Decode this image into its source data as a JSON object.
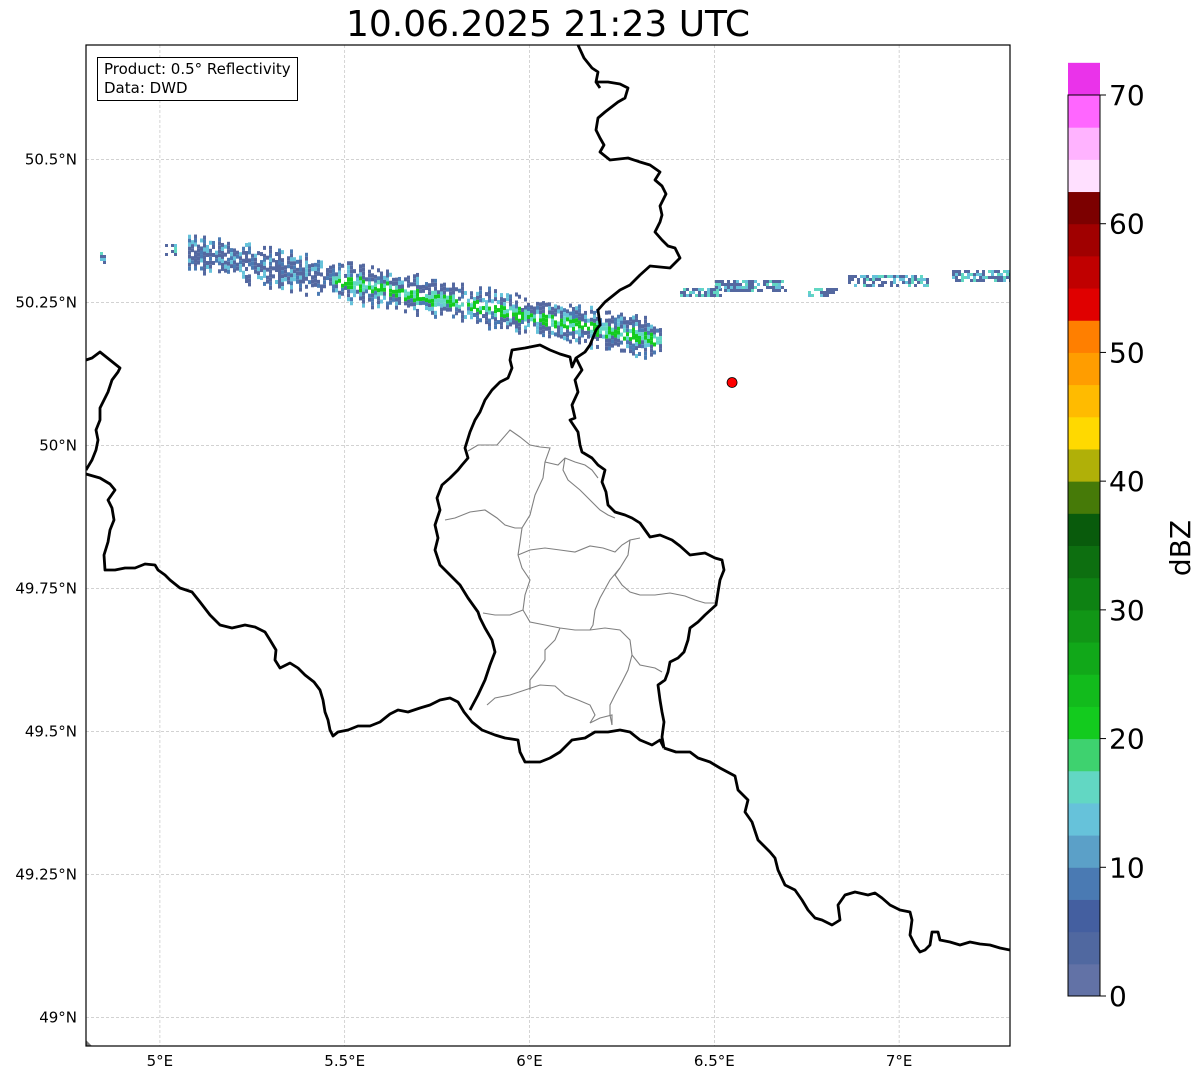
{
  "title": "10.06.2025 21:23 UTC",
  "info": {
    "product": "Product: 0.5° Reflectivity",
    "source": "Data: DWD"
  },
  "map": {
    "lon_range": [
      4.8,
      7.3
    ],
    "lat_range": [
      48.95,
      50.7
    ],
    "lon_ticks": [
      {
        "v": 5.0,
        "label": "5°E"
      },
      {
        "v": 5.5,
        "label": "5.5°E"
      },
      {
        "v": 6.0,
        "label": "6°E"
      },
      {
        "v": 6.5,
        "label": "6.5°E"
      },
      {
        "v": 7.0,
        "label": "7°E"
      }
    ],
    "lat_ticks": [
      {
        "v": 50.5,
        "label": "50.5°N"
      },
      {
        "v": 50.25,
        "label": "50.25°N"
      },
      {
        "v": 50.0,
        "label": "50°N"
      },
      {
        "v": 49.75,
        "label": "49.75°N"
      },
      {
        "v": 49.5,
        "label": "49.5°N"
      },
      {
        "v": 49.25,
        "label": "49.25°N"
      },
      {
        "v": 49.0,
        "label": "49°N"
      }
    ],
    "radar_site": {
      "lon": 6.548,
      "lat": 50.11,
      "color": "#ff0000"
    },
    "gridlines": true
  },
  "colorbar": {
    "label": "dBZ",
    "min": 0,
    "max": 70,
    "step": 2.5,
    "ticks": [
      {
        "v": 0,
        "label": "0"
      },
      {
        "v": 10,
        "label": "10"
      },
      {
        "v": 20,
        "label": "20"
      },
      {
        "v": 30,
        "label": "30"
      },
      {
        "v": 40,
        "label": "40"
      },
      {
        "v": 50,
        "label": "50"
      },
      {
        "v": 60,
        "label": "60"
      },
      {
        "v": 70,
        "label": "70"
      }
    ],
    "colors": [
      "#6272a6",
      "#5068a0",
      "#445fa0",
      "#4a7ab3",
      "#5ba0c8",
      "#66c2da",
      "#62d7c3",
      "#3ed26f",
      "#13cb1e",
      "#12bb1c",
      "#11a819",
      "#119616",
      "#0e8213",
      "#0d6f10",
      "#095b0c",
      "#467a08",
      "#b0b008",
      "#ffd900",
      "#ffbb00",
      "#ff9d00",
      "#ff7f00",
      "#e00000",
      "#c00000",
      "#a00000",
      "#7c0000",
      "#ffe0ff",
      "#ffb3ff",
      "#ff66ff",
      "#ea33ea"
    ]
  },
  "echo_color_bins": [
    "#5468a0",
    "#4a7ab3",
    "#66c2da",
    "#62d7c3",
    "#13cb1e"
  ]
}
